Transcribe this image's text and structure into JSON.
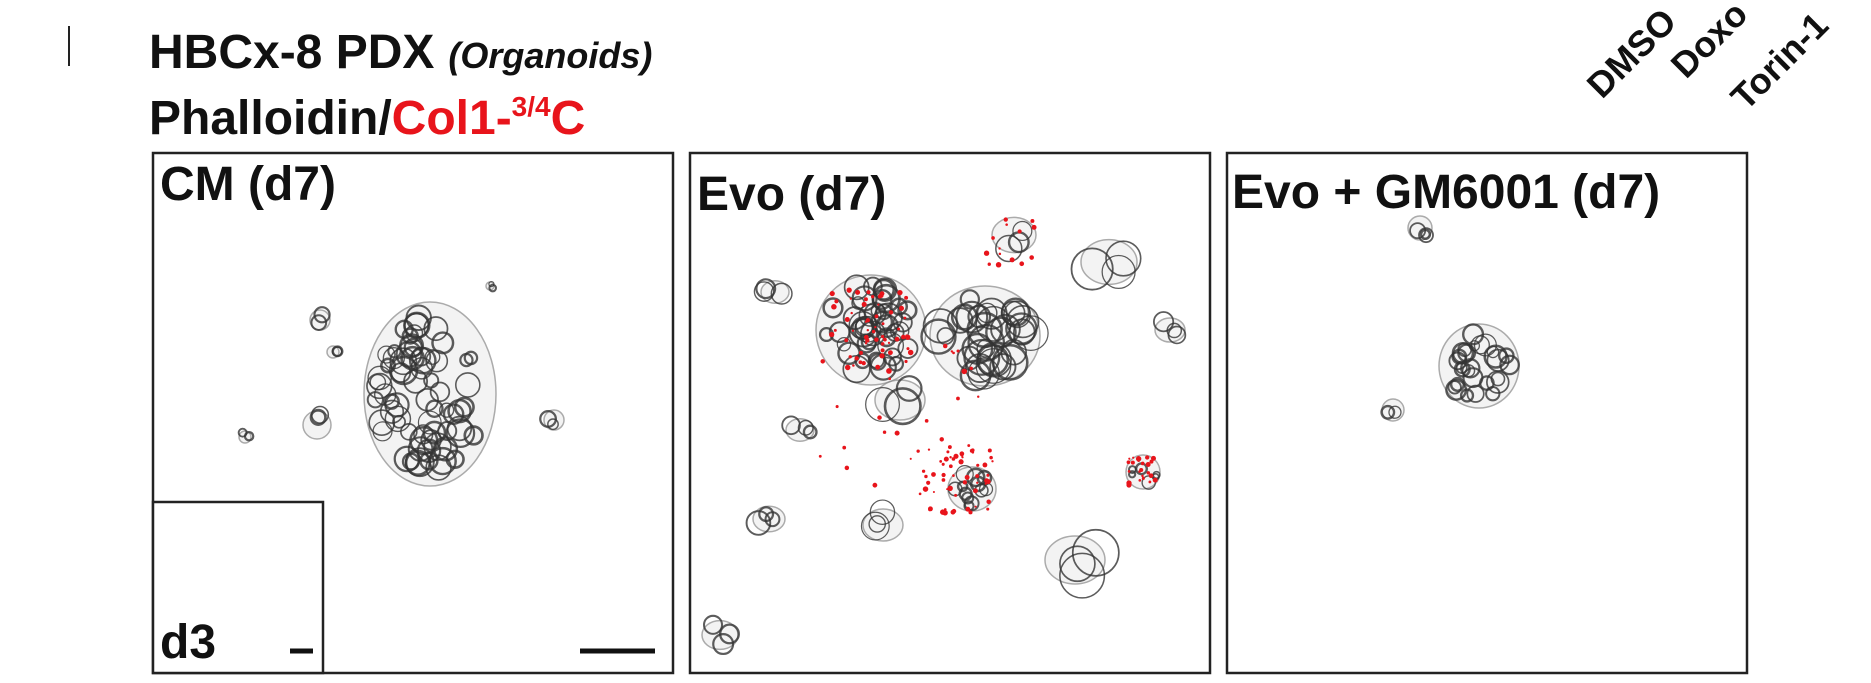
{
  "header": {
    "title": "HBCx-8 PDX",
    "title_note": "(Organoids)",
    "stain_black": "Phalloidin/",
    "stain_red": "Col1-",
    "stain_red_sup": "3/4",
    "stain_red_end": "C"
  },
  "conditions": [
    "DMSO",
    "Doxo",
    "Torin-1"
  ],
  "panels": [
    {
      "label": "CM (d7)",
      "inset_label": "d3"
    },
    {
      "label": "Evo (d7)"
    },
    {
      "label": "Evo + GM6001 (d7)"
    }
  ]
}
